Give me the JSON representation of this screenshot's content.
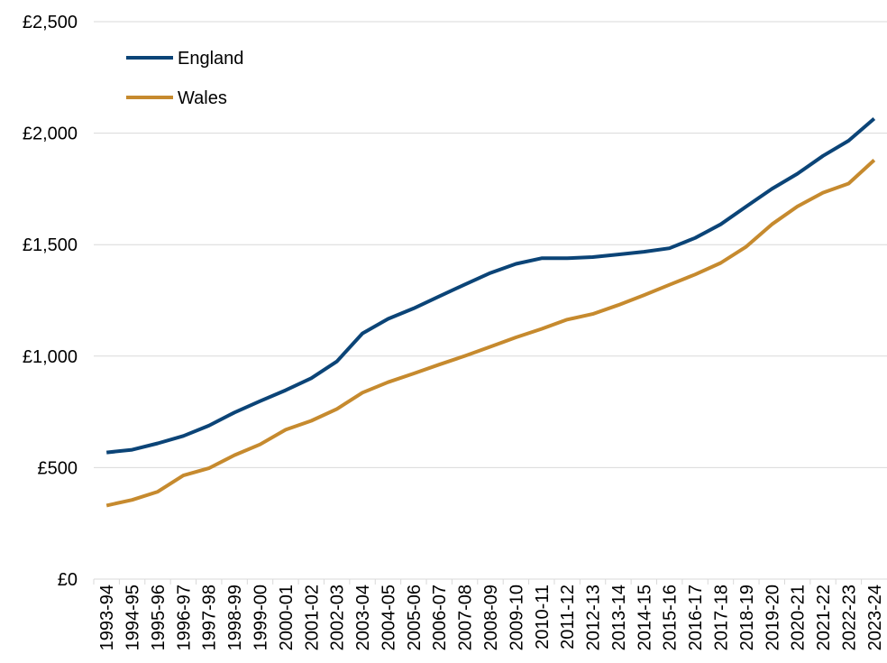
{
  "chart_data": {
    "type": "line",
    "categories": [
      "1993-94",
      "1994-95",
      "1995-96",
      "1996-97",
      "1997-98",
      "1998-99",
      "1999-00",
      "2000-01",
      "2001-02",
      "2002-03",
      "2003-04",
      "2004-05",
      "2005-06",
      "2006-07",
      "2007-08",
      "2008-09",
      "2009-10",
      "2010-11",
      "2011-12",
      "2012-13",
      "2013-14",
      "2014-15",
      "2015-16",
      "2016-17",
      "2017-18",
      "2018-19",
      "2019-20",
      "2020-21",
      "2021-22",
      "2022-23",
      "2023-24"
    ],
    "series": [
      {
        "name": "England",
        "color": "#0b4477",
        "values": [
          568,
          580,
          609,
          642,
          688,
          747,
          798,
          847,
          901,
          976,
          1102,
          1167,
          1214,
          1268,
          1321,
          1373,
          1414,
          1439,
          1439,
          1444,
          1456,
          1468,
          1484,
          1530,
          1591,
          1671,
          1750,
          1818,
          1898,
          1966,
          2065
        ]
      },
      {
        "name": "Wales",
        "color": "#c68a2e",
        "values": [
          330,
          355,
          392,
          465,
          497,
          556,
          604,
          670,
          710,
          763,
          836,
          883,
          922,
          962,
          1001,
          1042,
          1084,
          1122,
          1164,
          1189,
          1229,
          1273,
          1320,
          1366,
          1418,
          1491,
          1591,
          1671,
          1733,
          1774,
          1879
        ]
      }
    ],
    "ylim": [
      0,
      2500
    ],
    "yticks": [
      {
        "value": 0,
        "label": "£0"
      },
      {
        "value": 500,
        "label": "£500"
      },
      {
        "value": 1000,
        "label": "£1,000"
      },
      {
        "value": 1500,
        "label": "£1,500"
      },
      {
        "value": 2000,
        "label": "£2,000"
      },
      {
        "value": 2500,
        "label": "£2,500"
      }
    ],
    "grid": true,
    "legend": "upper-left"
  }
}
